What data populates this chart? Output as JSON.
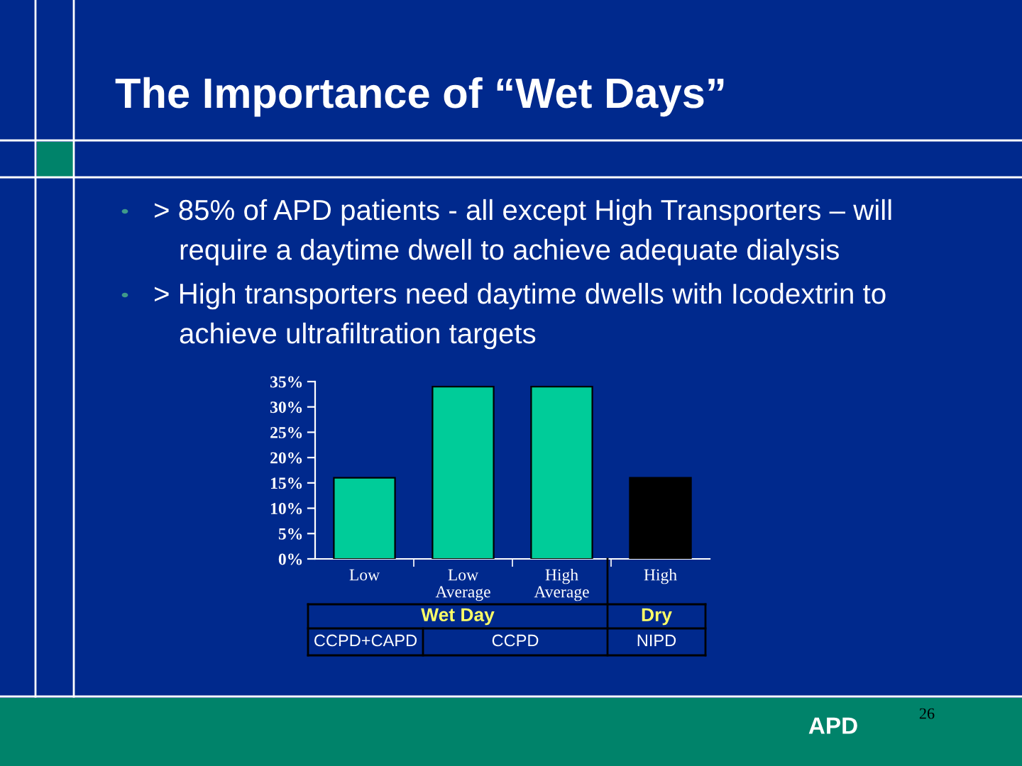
{
  "chart_data": {
    "type": "bar",
    "title": "The Importance of “Wet Days”",
    "categories": [
      "Low",
      "Low\nAverage",
      "High\nAverage",
      "High"
    ],
    "values": [
      16,
      34,
      34,
      16
    ],
    "colors": [
      "#00cc99",
      "#00cc99",
      "#00cc99",
      "#000000"
    ],
    "ylim": [
      0,
      35
    ],
    "yticks": [
      {
        "value": 0,
        "label": "0%"
      },
      {
        "value": 5,
        "label": "5%"
      },
      {
        "value": 10,
        "label": "10%"
      },
      {
        "value": 15,
        "label": "15%"
      },
      {
        "value": 20,
        "label": "20%"
      },
      {
        "value": 25,
        "label": "25%"
      },
      {
        "value": 30,
        "label": "30%"
      },
      {
        "value": 35,
        "label": "35%"
      }
    ],
    "grid": false,
    "annotations": [
      "> 85% of APD patients - all except High Transporters – will\nrequire a daytime dwell to achieve adequate dialysis",
      "> High transporters need daytime dwells with Icodextrin to\nachieve ultrafiltration targets",
      "Wet Day",
      "Dry",
      "CCPD+CAPD",
      "CCPD",
      "NIPD",
      "APD",
      "26"
    ]
  }
}
